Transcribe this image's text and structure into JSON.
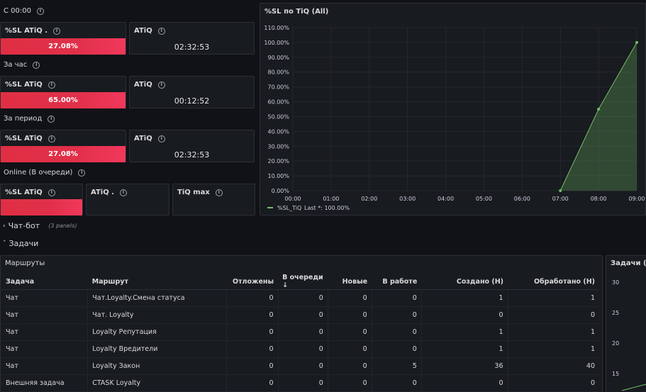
{
  "sections": {
    "today": "С 00:00",
    "hour": "За час",
    "period": "За период",
    "online": "Online (В очереди)"
  },
  "stats": {
    "today": {
      "sl_title": "%SL ATiQ .",
      "sl_value": "27.08%",
      "sl_fill": 1.0,
      "atiq_title": "ATiQ",
      "atiq_value": "02:32:53"
    },
    "hour": {
      "sl_title": "%SL ATiQ",
      "sl_value": "65.00%",
      "sl_fill": 1.0,
      "atiq_title": "ATiQ",
      "atiq_value": "00:12:52"
    },
    "period": {
      "sl_title": "%SL ATiQ",
      "sl_value": "27.08%",
      "sl_fill": 1.0,
      "atiq_title": "ATiQ",
      "atiq_value": "02:32:53"
    },
    "online": {
      "sl_title": "%SL ATiQ",
      "sl_value": "",
      "atiq_title": "ATiQ .",
      "tiq_title": "TiQ max"
    }
  },
  "chart_data": {
    "type": "area",
    "title": "%SL по TiQ (All)",
    "x": [
      "00:00",
      "01:00",
      "02:00",
      "03:00",
      "04:00",
      "05:00",
      "06:00",
      "07:00",
      "08:00",
      "09:00"
    ],
    "y_ticks": [
      "0.00%",
      "10.00%",
      "20.00%",
      "30.00%",
      "40.00%",
      "50.00%",
      "60.00%",
      "70.00%",
      "80.00%",
      "90.00%",
      "100.00%",
      "110.00%"
    ],
    "ylim": [
      0,
      110
    ],
    "series": [
      {
        "name": "%SL_TiQ",
        "points": [
          {
            "x": "07:00",
            "y": 0
          },
          {
            "x": "08:00",
            "y": 55
          },
          {
            "x": "09:00",
            "y": 100
          }
        ],
        "color": "#73bf69"
      }
    ],
    "legend": {
      "label": "%SL_TiQ",
      "last": "Last *: 100.00%",
      "placement": "bottom-left"
    },
    "grid": true
  },
  "rows": {
    "chatbot": {
      "label": "Чат-бот",
      "sub": "(3 panels)"
    },
    "tasks": {
      "label": "Задачи"
    }
  },
  "routes_panel": {
    "title": "Маршруты",
    "columns": [
      "Задача",
      "Маршрут",
      "Отложены",
      "В очереди ↓",
      "Новые",
      "В работе",
      "Создано (Н)",
      "Обработано (Н)"
    ],
    "rows": [
      [
        "Чат",
        "Чат.Loyalty.Смена статуса",
        "0",
        "0",
        "0",
        "0",
        "1",
        "1"
      ],
      [
        "Чат",
        "Чат. Loyalty",
        "0",
        "0",
        "0",
        "0",
        "0",
        "0"
      ],
      [
        "Чат",
        "Loyalty Репутация",
        "0",
        "0",
        "0",
        "0",
        "1",
        "1"
      ],
      [
        "Чат",
        "Loyalty Вредители",
        "0",
        "0",
        "0",
        "0",
        "1",
        "1"
      ],
      [
        "Чат",
        "Loyalty Закон",
        "0",
        "0",
        "0",
        "5",
        "36",
        "40"
      ],
      [
        "Внешняя задача",
        "CTASK Loyalty",
        "0",
        "0",
        "0",
        "0",
        "0",
        "0"
      ]
    ]
  },
  "tasks_panel": {
    "title": "Задачи (All",
    "y_ticks": [
      "30",
      "25",
      "20",
      "15"
    ]
  },
  "colors": {
    "background": "#111217",
    "panel": "#181b1f",
    "accent_red": "#e02f44",
    "series_green": "#73bf69"
  }
}
